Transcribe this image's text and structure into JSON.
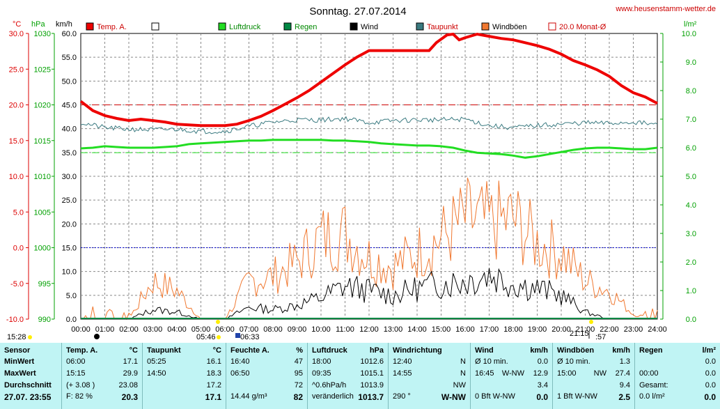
{
  "chart_data": {
    "type": "line",
    "title": "Sonntag. 27.07.2014",
    "source_link": "www.heusenstamm-wetter.de",
    "axes": {
      "temp": {
        "label": "°C",
        "ticks": [
          "30.0",
          "25.0",
          "20.0",
          "15.0",
          "10.0",
          "5.0",
          "0.0",
          "-5.0",
          "-10.0"
        ],
        "range": [
          -10,
          30
        ],
        "color": "#dd0000"
      },
      "pressure": {
        "label": "hPa",
        "ticks": [
          "1030",
          "1025",
          "1020",
          "1015",
          "1010",
          "1005",
          "1000",
          "995",
          "990"
        ],
        "range": [
          990,
          1030
        ],
        "color": "#00a000"
      },
      "wind": {
        "label": "km/h",
        "ticks": [
          "60.0",
          "55.0",
          "50.0",
          "45.0",
          "40.0",
          "35.0",
          "30.0",
          "25.0",
          "20.0",
          "15.0",
          "10.0",
          "5.0",
          "0.0"
        ],
        "range": [
          0,
          60
        ],
        "color": "#000000"
      },
      "rain": {
        "label": "l/m²",
        "ticks": [
          "10.0",
          "9.0",
          "8.0",
          "7.0",
          "6.0",
          "5.0",
          "4.0",
          "3.0",
          "2.0",
          "1.0",
          "0.0"
        ],
        "range": [
          0,
          10
        ],
        "color": "#00a000"
      }
    },
    "x_ticks": [
      "00:00",
      "01:00",
      "02:00",
      "03:00",
      "04:00",
      "05:00",
      "06:00",
      "07:00",
      "08:00",
      "09:00",
      "10:00",
      "11:00",
      "12:00",
      "13:00",
      "14:00",
      "15:00",
      "16:00",
      "17:00",
      "18:00",
      "19:00",
      "20:00",
      "21:00",
      "22:00",
      "23:00",
      "24:00"
    ],
    "legend": [
      "Temp. A.",
      "",
      "Luftdruck",
      "Regen",
      "Wind",
      "Taupunkt",
      "Windböen",
      "20.0 Monat-Ø"
    ],
    "colors": {
      "temp": "#ee0000",
      "pressure": "#22dd22",
      "rain": "#008844",
      "wind": "#000000",
      "dew": "#3a7a80",
      "gust": "#f07830",
      "month": "#cc0000"
    },
    "temp_hours": [
      0,
      0.5,
      1,
      1.5,
      2,
      2.5,
      3,
      3.5,
      4,
      4.5,
      5,
      5.5,
      6,
      6.5,
      7,
      7.5,
      8,
      8.5,
      9,
      9.5,
      10,
      10.5,
      11,
      11.5,
      12,
      12.5,
      13,
      13.5,
      14,
      14.5,
      14.8,
      15,
      15.25,
      15.5,
      15.75,
      16,
      16.5,
      17,
      17.5,
      18,
      18.5,
      19,
      19.5,
      20,
      20.5,
      21,
      21.5,
      22,
      22.5,
      23,
      23.5,
      24
    ],
    "temp_values": [
      20.5,
      19.2,
      18.5,
      18.1,
      17.8,
      18,
      17.8,
      17.6,
      17.3,
      17.2,
      17.1,
      17.1,
      17.1,
      17.3,
      17.8,
      18.4,
      19.2,
      20.1,
      21,
      22,
      23.2,
      24.4,
      25.6,
      26.7,
      27.6,
      27.6,
      27.6,
      27.6,
      27.6,
      27.6,
      28.7,
      29.2,
      29.8,
      29.9,
      29.1,
      29.4,
      29.9,
      29.6,
      29.3,
      29.1,
      28.7,
      28.3,
      27.8,
      27.1,
      26.2,
      25.6,
      24.9,
      24,
      22.7,
      21.7,
      21.1,
      20.2
    ],
    "dew_hours": [
      0,
      1,
      2,
      3,
      4,
      5,
      6,
      7,
      8,
      9,
      10,
      11,
      12,
      13,
      14,
      15,
      16,
      17,
      18,
      19,
      20,
      21,
      22,
      23,
      24
    ],
    "dew_values": [
      17.5,
      16.8,
      16.6,
      16.5,
      16.6,
      16.3,
      16.3,
      17,
      17.6,
      17.9,
      17.9,
      18.1,
      17.5,
      17.8,
      17.9,
      17.9,
      18,
      17.1,
      16.8,
      17.1,
      17.3,
      17.5,
      17.4,
      17.6,
      17.2
    ],
    "pressure_hours": [
      0,
      0.5,
      1,
      1.5,
      2,
      2.5,
      3,
      3.5,
      4,
      4.5,
      5,
      5.5,
      6,
      6.5,
      7,
      7.5,
      8,
      8.5,
      9,
      9.5,
      10,
      10.5,
      11,
      11.5,
      12,
      12.5,
      13,
      13.5,
      14,
      14.5,
      15,
      15.5,
      16,
      16.5,
      17,
      17.5,
      18,
      18.5,
      19,
      19.5,
      20,
      20.5,
      21,
      21.5,
      22,
      22.5,
      23,
      23.5,
      24
    ],
    "pressure_values": [
      1013.9,
      1014,
      1014.2,
      1014.1,
      1014,
      1014,
      1014,
      1014.1,
      1014.2,
      1014.5,
      1014.6,
      1014.7,
      1014.8,
      1014.9,
      1015,
      1015,
      1015.1,
      1015.1,
      1015.1,
      1015.1,
      1015.1,
      1015,
      1015,
      1014.9,
      1014.8,
      1014.6,
      1014.5,
      1014.4,
      1014.3,
      1014.3,
      1014.2,
      1014,
      1013.6,
      1013.3,
      1013.2,
      1013.1,
      1012.9,
      1012.6,
      1012.8,
      1013.1,
      1013.4,
      1013.7,
      1013.9,
      1014,
      1014,
      1013.9,
      1013.8,
      1013.8,
      1014
    ],
    "month_temp_avg": 20.0,
    "month_pressure_avg": 1013.3,
    "zero_line": 0.0,
    "wind_hours": [
      0,
      1,
      2,
      3,
      4,
      5,
      6,
      7,
      8,
      9,
      10,
      11,
      12,
      13,
      14,
      15,
      16,
      17,
      18,
      19,
      20,
      21,
      22,
      23,
      24
    ],
    "wind_values": [
      0,
      0,
      0,
      2,
      1.5,
      0,
      0,
      2.5,
      2,
      3,
      4.5,
      7,
      6,
      5,
      6.5,
      7.5,
      8,
      9.5,
      7.5,
      6.5,
      5,
      1.5,
      0,
      0,
      0
    ],
    "gust_hours": [
      0,
      1,
      2,
      3,
      4,
      5,
      6,
      7,
      8,
      9,
      10,
      11,
      12,
      13,
      14,
      15,
      16,
      17,
      18,
      19,
      20,
      21,
      22,
      23,
      24
    ],
    "gust_values": [
      0,
      0,
      0,
      8,
      6,
      0,
      0,
      8,
      9,
      12,
      17,
      18,
      13,
      11,
      14,
      17,
      21,
      20,
      21,
      16,
      14,
      8,
      6,
      1,
      0
    ],
    "sunrise": "05:46",
    "moon": "06:33",
    "sunset": "21:15",
    "moon_set_partial": ":57",
    "left_time": "15:28"
  },
  "stats": {
    "sensor": {
      "title": "Sensor",
      "rows": [
        "MinWert",
        "MaxWert",
        "Durchschnitt"
      ],
      "footer": "27.07. 23:55"
    },
    "temp": {
      "title": "Temp. A.",
      "unit": "°C",
      "rows": [
        [
          "06:00",
          "17.1"
        ],
        [
          "15:15",
          "29.9"
        ],
        [
          "(+ 3.08 )",
          "23.08"
        ]
      ],
      "footer": [
        "F: 82 %",
        "20.3"
      ]
    },
    "dew": {
      "title": "Taupunkt",
      "unit": "°C",
      "rows": [
        [
          "05:25",
          "16.1"
        ],
        [
          "14:50",
          "18.3"
        ],
        [
          "",
          "17.2"
        ]
      ],
      "footer": [
        "",
        "17.1"
      ]
    },
    "hum": {
      "title": "Feuchte A.",
      "unit": "%",
      "rows": [
        [
          "16:40",
          "47"
        ],
        [
          "06:50",
          "95"
        ],
        [
          "",
          "72"
        ]
      ],
      "footer": [
        "14.44 g/m³",
        "82"
      ]
    },
    "press": {
      "title": "Luftdruck",
      "unit": "hPa",
      "rows": [
        [
          "18:00",
          "1012.6"
        ],
        [
          "09:35",
          "1015.1"
        ],
        [
          "^0.6hPa/h",
          "1013.9"
        ]
      ],
      "footer": [
        "veränderlich",
        "1013.7"
      ]
    },
    "winddir": {
      "title": "Windrichtung",
      "unit": "",
      "rows": [
        [
          "12:40",
          "N"
        ],
        [
          "14:55",
          "N"
        ],
        [
          "",
          "NW"
        ]
      ],
      "footer": [
        "290 °",
        "W-NW"
      ]
    },
    "wind": {
      "title": "Wind",
      "unit": "km/h",
      "rows": [
        [
          "Ø 10 min.",
          "",
          "0.0"
        ],
        [
          "16:45",
          "W-NW",
          "12.9"
        ],
        [
          "",
          "",
          "3.4"
        ]
      ],
      "footer": [
        "0 Bft W-NW",
        "0.0"
      ]
    },
    "gust": {
      "title": "Windböen",
      "unit": "km/h",
      "rows": [
        [
          "Ø 10 min.",
          "",
          "1.3"
        ],
        [
          "15:00",
          "NW",
          "27.4"
        ],
        [
          "",
          "",
          "9.4"
        ]
      ],
      "footer": [
        "1 Bft W-NW",
        "2.5"
      ]
    },
    "rain": {
      "title": "Regen",
      "unit": "l/m²",
      "rows": [
        [
          "",
          "0.0"
        ],
        [
          "00:00",
          "0.0"
        ],
        [
          "Gesamt:",
          "0.0"
        ]
      ],
      "footer": [
        "0.0 l/m²",
        "0.0"
      ]
    }
  }
}
